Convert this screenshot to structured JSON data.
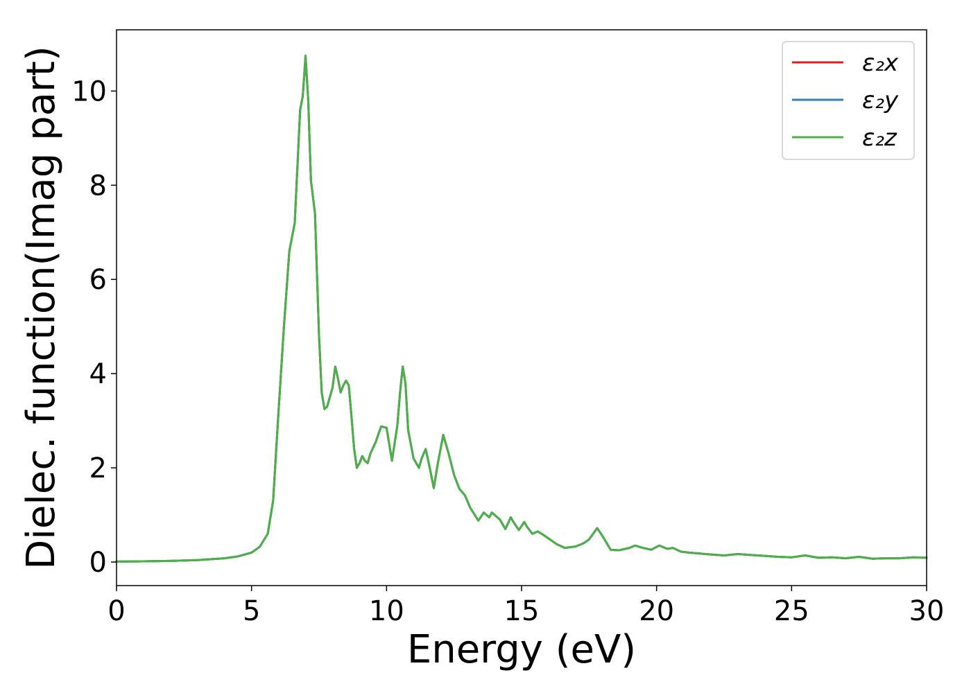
{
  "chart_data": {
    "type": "line",
    "title": "",
    "xlabel": "Energy (eV)",
    "ylabel": "Dielec. function(Imag part)",
    "xlim": [
      0,
      30
    ],
    "ylim": [
      -0.5,
      11.3
    ],
    "xticks": [
      0,
      5,
      10,
      15,
      20,
      25,
      30
    ],
    "xtick_labels": [
      "0",
      "5",
      "10",
      "15",
      "20",
      "25",
      "30"
    ],
    "yticks": [
      0,
      2,
      4,
      6,
      8,
      10
    ],
    "ytick_labels": [
      "0",
      "2",
      "4",
      "6",
      "8",
      "10"
    ],
    "grid": false,
    "legend_position": "top-right",
    "x": [
      0,
      1,
      2,
      3,
      4,
      4.5,
      5,
      5.3,
      5.6,
      5.8,
      6.0,
      6.2,
      6.4,
      6.6,
      6.7,
      6.8,
      6.9,
      7.0,
      7.1,
      7.2,
      7.35,
      7.5,
      7.6,
      7.7,
      7.8,
      8.0,
      8.1,
      8.2,
      8.3,
      8.4,
      8.5,
      8.6,
      8.7,
      8.8,
      8.9,
      9.0,
      9.1,
      9.2,
      9.3,
      9.4,
      9.6,
      9.8,
      10.0,
      10.1,
      10.2,
      10.4,
      10.5,
      10.6,
      10.7,
      10.8,
      11.0,
      11.2,
      11.3,
      11.45,
      11.6,
      11.75,
      11.9,
      12.1,
      12.3,
      12.5,
      12.7,
      12.9,
      13.1,
      13.4,
      13.6,
      13.8,
      13.9,
      14.0,
      14.2,
      14.4,
      14.6,
      14.7,
      14.9,
      15.1,
      15.2,
      15.4,
      15.6,
      15.8,
      16.0,
      16.3,
      16.6,
      17.0,
      17.3,
      17.5,
      17.8,
      18.0,
      18.3,
      18.6,
      19.0,
      19.2,
      19.5,
      19.8,
      20.1,
      20.4,
      20.6,
      20.9,
      21.2,
      21.6,
      22.0,
      22.5,
      23.0,
      23.5,
      24.0,
      24.5,
      25.0,
      25.5,
      26.0,
      26.5,
      27.0,
      27.5,
      28.0,
      28.5,
      29.0,
      29.5,
      30.0
    ],
    "series": [
      {
        "name": "ε₂x",
        "color": "#e41a1c",
        "values": [
          0.01,
          0.015,
          0.025,
          0.04,
          0.08,
          0.12,
          0.2,
          0.32,
          0.6,
          1.3,
          3.2,
          5.0,
          6.6,
          7.2,
          8.4,
          9.6,
          9.9,
          10.75,
          9.8,
          8.1,
          7.4,
          4.8,
          3.6,
          3.25,
          3.3,
          3.7,
          4.15,
          3.9,
          3.6,
          3.75,
          3.85,
          3.75,
          3.1,
          2.4,
          2.0,
          2.1,
          2.25,
          2.15,
          2.1,
          2.3,
          2.55,
          2.88,
          2.85,
          2.5,
          2.15,
          2.9,
          3.6,
          4.15,
          3.8,
          2.8,
          2.2,
          2.0,
          2.2,
          2.4,
          2.0,
          1.57,
          2.1,
          2.7,
          2.3,
          1.85,
          1.55,
          1.42,
          1.15,
          0.88,
          1.05,
          0.95,
          1.05,
          1.0,
          0.9,
          0.7,
          0.95,
          0.85,
          0.68,
          0.85,
          0.75,
          0.6,
          0.65,
          0.58,
          0.5,
          0.38,
          0.3,
          0.33,
          0.4,
          0.48,
          0.72,
          0.55,
          0.26,
          0.25,
          0.3,
          0.35,
          0.3,
          0.26,
          0.35,
          0.28,
          0.3,
          0.22,
          0.2,
          0.18,
          0.16,
          0.14,
          0.17,
          0.15,
          0.13,
          0.11,
          0.1,
          0.14,
          0.09,
          0.1,
          0.08,
          0.11,
          0.07,
          0.08,
          0.08,
          0.1,
          0.09
        ]
      },
      {
        "name": "ε₂y",
        "color": "#377eb8",
        "values": [
          0.01,
          0.015,
          0.025,
          0.04,
          0.08,
          0.12,
          0.2,
          0.32,
          0.6,
          1.3,
          3.2,
          5.0,
          6.6,
          7.2,
          8.4,
          9.6,
          9.9,
          10.75,
          9.8,
          8.1,
          7.4,
          4.8,
          3.6,
          3.25,
          3.3,
          3.7,
          4.15,
          3.9,
          3.6,
          3.75,
          3.85,
          3.75,
          3.1,
          2.4,
          2.0,
          2.1,
          2.25,
          2.15,
          2.1,
          2.3,
          2.55,
          2.88,
          2.85,
          2.5,
          2.15,
          2.9,
          3.6,
          4.15,
          3.8,
          2.8,
          2.2,
          2.0,
          2.2,
          2.4,
          2.0,
          1.57,
          2.1,
          2.7,
          2.3,
          1.85,
          1.55,
          1.42,
          1.15,
          0.88,
          1.05,
          0.95,
          1.05,
          1.0,
          0.9,
          0.7,
          0.95,
          0.85,
          0.68,
          0.85,
          0.75,
          0.6,
          0.65,
          0.58,
          0.5,
          0.38,
          0.3,
          0.33,
          0.4,
          0.48,
          0.72,
          0.55,
          0.26,
          0.25,
          0.3,
          0.35,
          0.3,
          0.26,
          0.35,
          0.28,
          0.3,
          0.22,
          0.2,
          0.18,
          0.16,
          0.14,
          0.17,
          0.15,
          0.13,
          0.11,
          0.1,
          0.14,
          0.09,
          0.1,
          0.08,
          0.11,
          0.07,
          0.08,
          0.08,
          0.1,
          0.09
        ]
      },
      {
        "name": "ε₂z",
        "color": "#4daf4a",
        "values": [
          0.01,
          0.015,
          0.025,
          0.04,
          0.08,
          0.12,
          0.2,
          0.32,
          0.6,
          1.3,
          3.2,
          5.0,
          6.6,
          7.2,
          8.4,
          9.6,
          9.9,
          10.75,
          9.8,
          8.1,
          7.4,
          4.8,
          3.6,
          3.25,
          3.3,
          3.7,
          4.15,
          3.9,
          3.6,
          3.75,
          3.85,
          3.75,
          3.1,
          2.4,
          2.0,
          2.1,
          2.25,
          2.15,
          2.1,
          2.3,
          2.55,
          2.88,
          2.85,
          2.5,
          2.15,
          2.9,
          3.6,
          4.15,
          3.8,
          2.8,
          2.2,
          2.0,
          2.2,
          2.4,
          2.0,
          1.57,
          2.1,
          2.7,
          2.3,
          1.85,
          1.55,
          1.42,
          1.15,
          0.88,
          1.05,
          0.95,
          1.05,
          1.0,
          0.9,
          0.7,
          0.95,
          0.85,
          0.68,
          0.85,
          0.75,
          0.6,
          0.65,
          0.58,
          0.5,
          0.38,
          0.3,
          0.33,
          0.4,
          0.48,
          0.72,
          0.55,
          0.26,
          0.25,
          0.3,
          0.35,
          0.3,
          0.26,
          0.35,
          0.28,
          0.3,
          0.22,
          0.2,
          0.18,
          0.16,
          0.14,
          0.17,
          0.15,
          0.13,
          0.11,
          0.1,
          0.14,
          0.09,
          0.1,
          0.08,
          0.11,
          0.07,
          0.08,
          0.08,
          0.1,
          0.09
        ]
      }
    ]
  }
}
